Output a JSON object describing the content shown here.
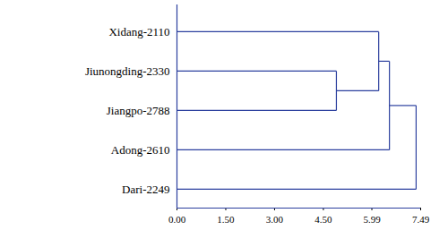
{
  "chart_data": {
    "type": "dendrogram",
    "leaves": [
      "Xidang-2110",
      "Jiunongding-2330",
      "Jiangpo-2788",
      "Adong-2610",
      "Dari-2249"
    ],
    "merges": [
      {
        "children": [
          "Jiunongding-2330",
          "Jiangpo-2788"
        ],
        "height": 4.9
      },
      {
        "children": [
          "Xidang-2110",
          0
        ],
        "height": 6.2
      },
      {
        "children": [
          1,
          "Adong-2610"
        ],
        "height": 6.53
      },
      {
        "children": [
          2,
          "Dari-2249"
        ],
        "height": 7.35
      }
    ],
    "xlim": [
      0,
      7.49
    ],
    "xticks": [
      {
        "value": 0,
        "label": "0.00"
      },
      {
        "value": 1.5,
        "label": "1.50"
      },
      {
        "value": 3,
        "label": "3.00"
      },
      {
        "value": 4.5,
        "label": "4.50"
      },
      {
        "value": 5.99,
        "label": "5.99"
      },
      {
        "value": 7.49,
        "label": "7.49"
      }
    ],
    "color": "#2b3f9e"
  }
}
